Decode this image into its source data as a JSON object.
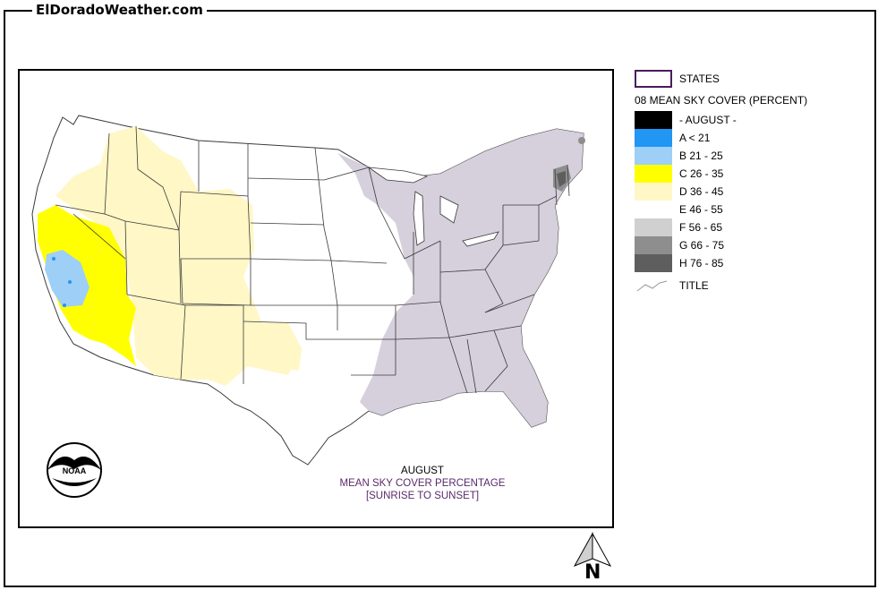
{
  "site": {
    "title": "ElDoradoWeather.com"
  },
  "map": {
    "caption_line1": "AUGUST",
    "caption_line2": "MEAN SKY COVER PERCENTAGE",
    "caption_line3": "[SUNRISE TO SUNSET]",
    "logo_text": "NOAA"
  },
  "legend": {
    "states_label": "STATES",
    "heading": "08 MEAN SKY COVER (PERCENT)",
    "items": [
      {
        "label": "- AUGUST -",
        "color": "#000000"
      },
      {
        "label": "A < 21",
        "color": "#2196f3"
      },
      {
        "label": "B 21 - 25",
        "color": "#9ecff7"
      },
      {
        "label": "C 26 - 35",
        "color": "#ffff00"
      },
      {
        "label": "D 36 - 45",
        "color": "#fff7c6"
      },
      {
        "label": "E 46 - 55",
        "color": "#ffffff"
      },
      {
        "label": "F 56 - 65",
        "color": "#d0d0d0"
      },
      {
        "label": "G 66 - 75",
        "color": "#8e8e8e"
      },
      {
        "label": "H 76 - 85",
        "color": "#5e5e5e"
      }
    ],
    "title_label": "TITLE"
  },
  "compass": {
    "label": "N"
  },
  "colors": {
    "state_border": "#3a3a3a",
    "region_d": "#fff7c6",
    "region_c": "#ffff00",
    "region_b": "#9ecff7",
    "region_a": "#2196f3",
    "region_f": "#d6cfdc",
    "region_g": "#8e8e8e",
    "region_h": "#5e5e5e"
  }
}
